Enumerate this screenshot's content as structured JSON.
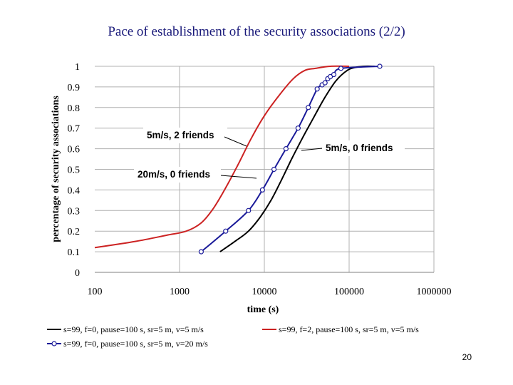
{
  "slide": {
    "title": "Pace of establishment of the security associations (2/2)",
    "page_number": "20"
  },
  "chart_data": {
    "type": "line",
    "x_scale": "log",
    "title": "",
    "xlabel": "time (s)",
    "ylabel": "percentage of security associations",
    "xlim": [
      100,
      1000000
    ],
    "ylim": [
      0,
      1
    ],
    "x_ticks": [
      100,
      1000,
      10000,
      100000,
      1000000
    ],
    "x_tick_labels": [
      "100",
      "1000",
      "10000",
      "100000",
      "1000000"
    ],
    "y_ticks": [
      0,
      0.1,
      0.2,
      0.3,
      0.4,
      0.5,
      0.6,
      0.7,
      0.8,
      0.9,
      1
    ],
    "y_tick_labels": [
      "0",
      "0.1",
      "0.2",
      "0.3",
      "0.4",
      "0.5",
      "0.6",
      "0.7",
      "0.8",
      "0.9",
      "1"
    ],
    "grid": "horizontal",
    "series": [
      {
        "name": "s=99, f=0, pause=100 s, sr=5 m, v=5 m/s",
        "color": "#000000",
        "marker": "none",
        "x": [
          3000,
          4500,
          6500,
          9000,
          12000,
          16000,
          21000,
          28000,
          38000,
          52000,
          70000,
          95000,
          120000,
          150000,
          200000
        ],
        "y": [
          0.1,
          0.15,
          0.2,
          0.27,
          0.35,
          0.45,
          0.55,
          0.65,
          0.75,
          0.85,
          0.93,
          0.98,
          0.995,
          1.0,
          1.0
        ]
      },
      {
        "name": "s=99, f=2, pause=100 s, sr=5 m, v=5 m/s",
        "color": "#cc2222",
        "marker": "none",
        "x": [
          100,
          300,
          700,
          1200,
          1800,
          2500,
          3500,
          5000,
          7000,
          10000,
          15000,
          22000,
          30000,
          40000,
          60000,
          100000
        ],
        "y": [
          0.12,
          0.15,
          0.18,
          0.2,
          0.24,
          0.31,
          0.41,
          0.53,
          0.65,
          0.76,
          0.86,
          0.94,
          0.98,
          0.99,
          1.0,
          1.0
        ]
      },
      {
        "name": "s=99, f=0, pause=100 s, sr=5 m, v=20 m/s",
        "color": "#1a1a99",
        "marker": "open-circle",
        "x": [
          1800,
          3500,
          6500,
          9500,
          13000,
          18000,
          25000,
          33000,
          42000,
          48000,
          52000,
          56000,
          60000,
          66000,
          80000,
          230000
        ],
        "y": [
          0.1,
          0.2,
          0.3,
          0.4,
          0.5,
          0.6,
          0.7,
          0.8,
          0.89,
          0.91,
          0.92,
          0.94,
          0.95,
          0.96,
          0.99,
          1.0
        ]
      }
    ],
    "annotations": [
      {
        "text": "5m/s, 2 friends",
        "series": 1
      },
      {
        "text": "5m/s, 0 friends",
        "series": 0
      },
      {
        "text": "20m/s, 0 friends",
        "series": 2
      }
    ]
  }
}
